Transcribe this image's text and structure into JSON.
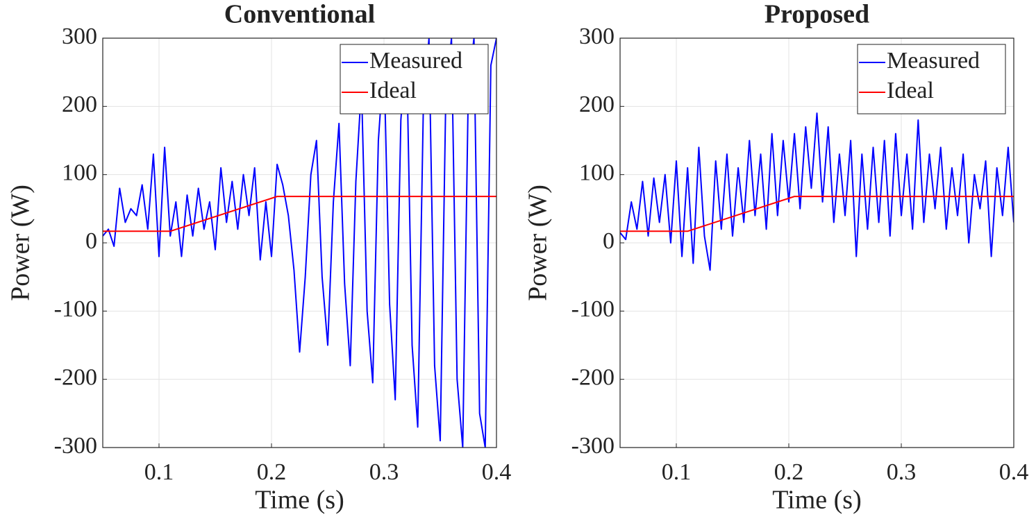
{
  "chart_data": [
    {
      "type": "line",
      "title": "Conventional",
      "xlabel": "Time (s)",
      "ylabel": "Power (W)",
      "xlim": [
        0.05,
        0.4
      ],
      "ylim": [
        -300,
        300
      ],
      "xticks": [
        0.1,
        0.2,
        0.3,
        0.4
      ],
      "yticks": [
        -300,
        -200,
        -100,
        0,
        100,
        200,
        300
      ],
      "grid": true,
      "legend": "northeast",
      "series": [
        {
          "name": "Measured",
          "color": "#0000ff",
          "x": [
            0.05,
            0.055,
            0.06,
            0.065,
            0.07,
            0.075,
            0.08,
            0.085,
            0.09,
            0.095,
            0.1,
            0.105,
            0.11,
            0.115,
            0.12,
            0.125,
            0.13,
            0.135,
            0.14,
            0.145,
            0.15,
            0.155,
            0.16,
            0.165,
            0.17,
            0.175,
            0.18,
            0.185,
            0.19,
            0.195,
            0.2,
            0.205,
            0.21,
            0.215,
            0.22,
            0.225,
            0.23,
            0.235,
            0.24,
            0.245,
            0.25,
            0.255,
            0.26,
            0.265,
            0.27,
            0.275,
            0.28,
            0.285,
            0.29,
            0.295,
            0.3,
            0.305,
            0.31,
            0.315,
            0.32,
            0.325,
            0.33,
            0.335,
            0.34,
            0.345,
            0.35,
            0.355,
            0.36,
            0.365,
            0.37,
            0.375,
            0.38,
            0.385,
            0.39,
            0.395,
            0.4
          ],
          "values": [
            10,
            20,
            -5,
            80,
            30,
            50,
            40,
            85,
            20,
            130,
            -20,
            140,
            10,
            60,
            -20,
            70,
            10,
            80,
            20,
            60,
            -10,
            110,
            30,
            90,
            20,
            100,
            40,
            110,
            -25,
            60,
            -20,
            115,
            85,
            40,
            -40,
            -160,
            -50,
            100,
            150,
            -50,
            -150,
            60,
            175,
            -60,
            -180,
            90,
            230,
            -100,
            -205,
            150,
            270,
            -90,
            -230,
            180,
            290,
            -150,
            -270,
            200,
            300,
            -180,
            -290,
            220,
            300,
            -200,
            -300,
            230,
            300,
            -250,
            -300,
            260,
            300
          ]
        },
        {
          "name": "Ideal",
          "color": "#ff0000",
          "x": [
            0.05,
            0.11,
            0.205,
            0.4
          ],
          "values": [
            17,
            17,
            68,
            68
          ]
        }
      ]
    },
    {
      "type": "line",
      "title": "Proposed",
      "xlabel": "Time (s)",
      "ylabel": "Power (W)",
      "xlim": [
        0.05,
        0.4
      ],
      "ylim": [
        -300,
        300
      ],
      "xticks": [
        0.1,
        0.2,
        0.3,
        0.4
      ],
      "yticks": [
        -300,
        -200,
        -100,
        0,
        100,
        200,
        300
      ],
      "grid": true,
      "legend": "northeast",
      "series": [
        {
          "name": "Measured",
          "color": "#0000ff",
          "x": [
            0.05,
            0.055,
            0.06,
            0.065,
            0.07,
            0.075,
            0.08,
            0.085,
            0.09,
            0.095,
            0.1,
            0.105,
            0.11,
            0.115,
            0.12,
            0.125,
            0.13,
            0.135,
            0.14,
            0.145,
            0.15,
            0.155,
            0.16,
            0.165,
            0.17,
            0.175,
            0.18,
            0.185,
            0.19,
            0.195,
            0.2,
            0.205,
            0.21,
            0.215,
            0.22,
            0.225,
            0.23,
            0.235,
            0.24,
            0.245,
            0.25,
            0.255,
            0.26,
            0.265,
            0.27,
            0.275,
            0.28,
            0.285,
            0.29,
            0.295,
            0.3,
            0.305,
            0.31,
            0.315,
            0.32,
            0.325,
            0.33,
            0.335,
            0.34,
            0.345,
            0.35,
            0.355,
            0.36,
            0.365,
            0.37,
            0.375,
            0.38,
            0.385,
            0.39,
            0.395,
            0.4
          ],
          "values": [
            15,
            5,
            60,
            20,
            90,
            10,
            95,
            30,
            100,
            0,
            120,
            -20,
            110,
            -30,
            140,
            10,
            -40,
            120,
            20,
            130,
            10,
            110,
            30,
            150,
            40,
            130,
            20,
            160,
            40,
            150,
            60,
            160,
            50,
            170,
            80,
            190,
            60,
            170,
            30,
            130,
            40,
            150,
            -20,
            130,
            20,
            140,
            30,
            150,
            10,
            160,
            40,
            130,
            20,
            180,
            30,
            130,
            50,
            140,
            20,
            110,
            40,
            130,
            0,
            100,
            50,
            120,
            -20,
            110,
            40,
            140,
            30
          ]
        },
        {
          "name": "Ideal",
          "color": "#ff0000",
          "x": [
            0.05,
            0.11,
            0.205,
            0.4
          ],
          "values": [
            17,
            17,
            68,
            68
          ]
        }
      ]
    }
  ]
}
